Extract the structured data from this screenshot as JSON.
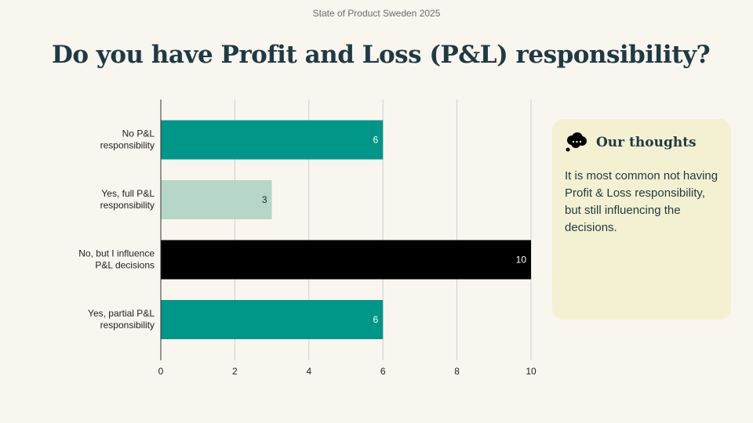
{
  "header": {
    "text": "State of Product Sweden 2025"
  },
  "title": "Do you have Profit and Loss (P&L) responsibility?",
  "thoughts": {
    "icon": "thought-bubble-icon",
    "title": "Our thoughts",
    "text": "It is most common not having Profit & Loss responsibility, but still influencing the decisions."
  },
  "colors": {
    "teal": "#009688",
    "light_green": "#b6d7c8",
    "black": "#000000",
    "background": "#f9f6ef",
    "panel": "#f4f0d2",
    "title": "#1f3a44"
  },
  "chart_data": {
    "type": "bar",
    "orientation": "horizontal",
    "categories": [
      [
        "No P&L",
        "responsibility"
      ],
      [
        "Yes, full P&L",
        "responsibility"
      ],
      [
        "No, but I influence",
        "P&L decisions"
      ],
      [
        "Yes, partial P&L",
        "responsibility"
      ]
    ],
    "values": [
      6,
      3,
      10,
      6
    ],
    "bar_colors": [
      "#009688",
      "#b6d7c8",
      "#000000",
      "#009688"
    ],
    "label_colors": [
      "#ffffff",
      "#222222",
      "#ffffff",
      "#ffffff"
    ],
    "xlim": [
      0,
      10
    ],
    "xticks": [
      0,
      2,
      4,
      6,
      8,
      10
    ],
    "grid": true,
    "title": "",
    "xlabel": "",
    "ylabel": ""
  }
}
